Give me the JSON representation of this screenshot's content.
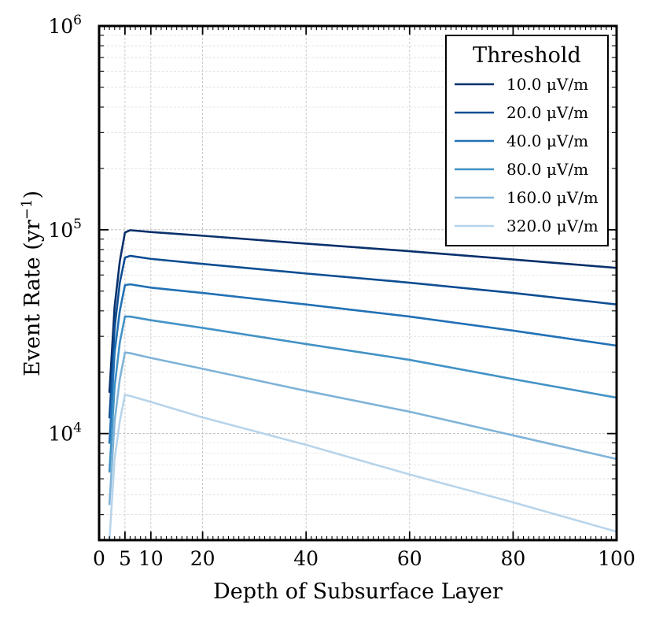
{
  "chart_data": {
    "type": "line",
    "title": "",
    "xlabel": "Depth of Subsurface Layer",
    "ylabel_main": "Event Rate (yr",
    "ylabel_sup": "−1",
    "ylabel_close": ")",
    "xlim": [
      0,
      100
    ],
    "ylim": [
      3000,
      1000000
    ],
    "yscale": "log",
    "grid": true,
    "x_ticks": [
      0,
      5,
      10,
      20,
      40,
      60,
      80,
      100
    ],
    "x_tick_labels": [
      "0",
      "5",
      "10",
      "20",
      "40",
      "60",
      "80",
      "100"
    ],
    "y_major_ticks": [
      {
        "value": 10000,
        "base": "10",
        "exp": "4"
      },
      {
        "value": 100000,
        "base": "10",
        "exp": "5"
      },
      {
        "value": 1000000,
        "base": "10",
        "exp": "6"
      }
    ],
    "legend": {
      "title": "Threshold",
      "placement": "top-right"
    },
    "series": [
      {
        "name": "10.0 μV/m",
        "color": "#08306b",
        "x": [
          2,
          3,
          4,
          5,
          6,
          10,
          20,
          40,
          60,
          80,
          100
        ],
        "y": [
          16000,
          42000,
          70000,
          97000,
          99500,
          97500,
          93500,
          85500,
          78500,
          71500,
          65000
        ]
      },
      {
        "name": "20.0 μV/m",
        "color": "#0d4d92",
        "x": [
          2,
          3,
          4,
          5,
          6,
          10,
          20,
          40,
          60,
          80,
          100
        ],
        "y": [
          12000,
          33000,
          55000,
          73000,
          74500,
          72000,
          68000,
          61000,
          55000,
          49000,
          43000
        ]
      },
      {
        "name": "40.0 μV/m",
        "color": "#2171b5",
        "x": [
          2,
          3,
          4,
          5,
          6,
          10,
          20,
          40,
          60,
          80,
          100
        ],
        "y": [
          9000,
          25000,
          40000,
          53500,
          54000,
          52000,
          49000,
          43000,
          37500,
          32000,
          27000
        ]
      },
      {
        "name": "80.0 μV/m",
        "color": "#4292c6",
        "x": [
          2,
          3,
          4,
          5,
          6,
          10,
          20,
          40,
          60,
          80,
          100
        ],
        "y": [
          6500,
          17000,
          28000,
          37500,
          37500,
          36000,
          33000,
          27500,
          23000,
          18500,
          15000
        ]
      },
      {
        "name": "160.0 μV/m",
        "color": "#7fb3d8",
        "x": [
          2,
          3,
          4,
          5,
          6,
          10,
          20,
          40,
          60,
          80,
          100
        ],
        "y": [
          4500,
          11500,
          18500,
          25000,
          24800,
          23500,
          20800,
          16200,
          12800,
          9800,
          7500
        ]
      },
      {
        "name": "320.0 μV/m",
        "color": "#b8d4ea",
        "x": [
          2,
          3,
          4,
          5,
          6,
          10,
          20,
          40,
          60,
          80,
          100
        ],
        "y": [
          3000,
          7500,
          11500,
          15500,
          15300,
          14300,
          12000,
          8800,
          6300,
          4600,
          3300
        ]
      }
    ]
  }
}
